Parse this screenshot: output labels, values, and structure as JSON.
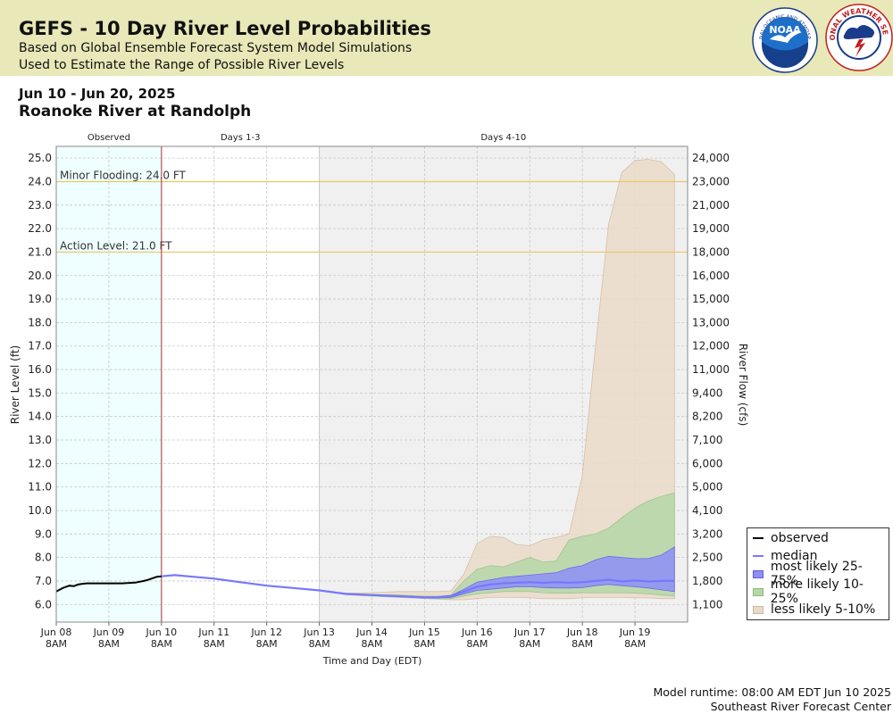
{
  "header": {
    "title": "GEFS - 10 Day River Level Probabilities",
    "subtitle1": "Based on Global Ensemble Forecast System Model Simulations",
    "subtitle2": "Used to Estimate the Range of Possible River Levels",
    "logo_left": "NOAA",
    "logo_right": "NATIONAL WEATHER SERVICE"
  },
  "date_range": "Jun 10 - Jun 20, 2025",
  "location": "Roanoke River at Randolph",
  "footer": {
    "runtime": "Model runtime: 08:00 AM EDT Jun 10 2025",
    "center": "Southeast River Forecast Center"
  },
  "colors": {
    "observed": "#000000",
    "median": "#7777ff",
    "band_25_75": "#8f8ff8",
    "band_10_25": "#b6d7a8",
    "band_5_10": "#eadbc8",
    "observed_bg": "#efffff",
    "days_4_10_bg": "#f0f0f0",
    "threshold_line": "#e8c860",
    "now_line": "#b03030"
  },
  "chart_data": {
    "type": "area",
    "xlabel": "Time and Day (EDT)",
    "ylabel": "River Level (ft)",
    "y2label": "River Flow (cfs)",
    "ylim": [
      5.25,
      25.5
    ],
    "xlim_hours": [
      0,
      288
    ],
    "x_ticks": [
      {
        "day": "Jun 08",
        "time": "8AM"
      },
      {
        "day": "Jun 09",
        "time": "8AM"
      },
      {
        "day": "Jun 10",
        "time": "8AM"
      },
      {
        "day": "Jun 11",
        "time": "8AM"
      },
      {
        "day": "Jun 12",
        "time": "8AM"
      },
      {
        "day": "Jun 13",
        "time": "8AM"
      },
      {
        "day": "Jun 14",
        "time": "8AM"
      },
      {
        "day": "Jun 15",
        "time": "8AM"
      },
      {
        "day": "Jun 16",
        "time": "8AM"
      },
      {
        "day": "Jun 17",
        "time": "8AM"
      },
      {
        "day": "Jun 18",
        "time": "8AM"
      },
      {
        "day": "Jun 19",
        "time": "8AM"
      }
    ],
    "y_ticks": [
      6.0,
      7.0,
      8.0,
      9.0,
      10.0,
      11.0,
      12.0,
      13.0,
      14.0,
      15.0,
      16.0,
      17.0,
      18.0,
      19.0,
      20.0,
      21.0,
      22.0,
      23.0,
      24.0,
      25.0
    ],
    "y2_ticks": [
      "1,100",
      "1,800",
      "2,500",
      "3,200",
      "4,100",
      "5,000",
      "6,000",
      "7,100",
      "8,200",
      "9,400",
      "11,000",
      "12,000",
      "13,000",
      "15,000",
      "16,000",
      "18,000",
      "19,000",
      "21,000",
      "23,000",
      "24,000"
    ],
    "periods": [
      {
        "label": "Observed",
        "start": 0,
        "end": 48
      },
      {
        "label": "Days 1-3",
        "start": 48,
        "end": 120
      },
      {
        "label": "Days 4-10",
        "start": 120,
        "end": 288
      }
    ],
    "thresholds": [
      {
        "label": "Minor Flooding: 24.0 FT",
        "value": 24.0
      },
      {
        "label": "Action Level: 21.0 FT",
        "value": 21.0
      }
    ],
    "now_hour": 48,
    "observed": {
      "name": "observed",
      "x": [
        0,
        3,
        6,
        8,
        10,
        12,
        14,
        16,
        24,
        30,
        36,
        40,
        42,
        44,
        46,
        48
      ],
      "y": [
        6.55,
        6.7,
        6.8,
        6.78,
        6.85,
        6.88,
        6.9,
        6.9,
        6.9,
        6.9,
        6.93,
        7.0,
        7.05,
        7.12,
        7.18,
        7.2
      ]
    },
    "forecast_x": [
      48,
      54,
      60,
      72,
      84,
      96,
      108,
      120,
      132,
      144,
      156,
      168,
      174,
      180,
      186,
      192,
      198,
      204,
      210,
      216,
      222,
      228,
      234,
      240,
      246,
      252,
      258,
      264,
      270,
      276,
      282
    ],
    "median": {
      "name": "median",
      "y": [
        7.2,
        7.25,
        7.2,
        7.1,
        6.95,
        6.8,
        6.7,
        6.6,
        6.45,
        6.4,
        6.35,
        6.3,
        6.3,
        6.35,
        6.55,
        6.75,
        6.85,
        6.9,
        6.93,
        6.95,
        6.92,
        6.95,
        6.93,
        6.95,
        7.0,
        7.05,
        6.98,
        7.02,
        6.98,
        7.0,
        7.0
      ]
    },
    "bands": [
      {
        "name": "less likely 5-10%",
        "low": [
          7.2,
          7.25,
          7.2,
          7.1,
          6.95,
          6.8,
          6.7,
          6.6,
          6.42,
          6.35,
          6.3,
          6.25,
          6.23,
          6.2,
          6.2,
          6.25,
          6.3,
          6.3,
          6.3,
          6.28,
          6.25,
          6.25,
          6.25,
          6.28,
          6.3,
          6.3,
          6.3,
          6.28,
          6.28,
          6.25,
          6.25
        ],
        "high": [
          7.2,
          7.25,
          7.2,
          7.1,
          6.95,
          6.8,
          6.7,
          6.62,
          6.48,
          6.5,
          6.55,
          6.55,
          6.55,
          6.58,
          7.3,
          8.6,
          8.9,
          8.85,
          8.55,
          8.5,
          8.75,
          8.85,
          9.0,
          11.5,
          17.0,
          22.2,
          24.4,
          24.9,
          24.95,
          24.85,
          24.3
        ]
      },
      {
        "name": "more likely 10-25%",
        "low": [
          7.2,
          7.25,
          7.2,
          7.1,
          6.95,
          6.8,
          6.7,
          6.6,
          6.42,
          6.36,
          6.32,
          6.27,
          6.25,
          6.25,
          6.35,
          6.45,
          6.5,
          6.55,
          6.55,
          6.55,
          6.5,
          6.48,
          6.48,
          6.5,
          6.5,
          6.5,
          6.5,
          6.48,
          6.45,
          6.4,
          6.35
        ],
        "high": [
          7.2,
          7.25,
          7.2,
          7.1,
          6.95,
          6.8,
          6.7,
          6.6,
          6.45,
          6.42,
          6.4,
          6.35,
          6.35,
          6.4,
          7.0,
          7.5,
          7.65,
          7.6,
          7.8,
          8.0,
          7.8,
          7.85,
          8.75,
          8.9,
          9.0,
          9.25,
          9.7,
          10.1,
          10.4,
          10.6,
          10.75
        ]
      },
      {
        "name": "most likely 25-75%",
        "low": [
          7.2,
          7.25,
          7.2,
          7.1,
          6.95,
          6.8,
          6.7,
          6.6,
          6.43,
          6.38,
          6.33,
          6.28,
          6.28,
          6.3,
          6.45,
          6.6,
          6.65,
          6.7,
          6.75,
          6.75,
          6.72,
          6.7,
          6.7,
          6.72,
          6.8,
          6.85,
          6.8,
          6.75,
          6.7,
          6.62,
          6.55
        ],
        "high": [
          7.2,
          7.25,
          7.2,
          7.1,
          6.95,
          6.8,
          6.7,
          6.6,
          6.45,
          6.4,
          6.37,
          6.32,
          6.32,
          6.38,
          6.65,
          6.95,
          7.05,
          7.15,
          7.2,
          7.25,
          7.3,
          7.35,
          7.55,
          7.65,
          7.9,
          8.05,
          8.0,
          7.95,
          7.95,
          8.1,
          8.45
        ]
      }
    ],
    "legend": [
      "observed",
      "median",
      "most likely 25-75%",
      "more likely 10-25%",
      "less likely 5-10%"
    ]
  }
}
